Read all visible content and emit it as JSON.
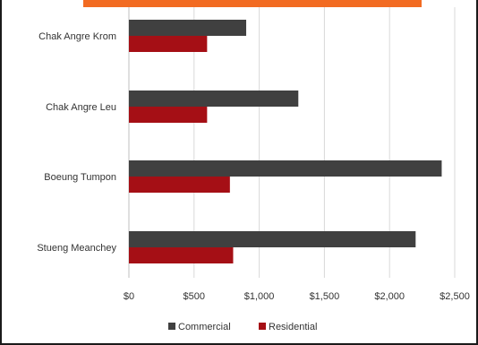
{
  "chart_data": {
    "type": "bar",
    "orientation": "horizontal",
    "categories": [
      "Chak Angre Krom",
      "Chak Angre Leu",
      "Boeung Tumpon",
      "Stueng Meanchey"
    ],
    "series": [
      {
        "name": "Commercial",
        "values": [
          900,
          1300,
          2400,
          2200
        ],
        "color": "#404040"
      },
      {
        "name": "Residential",
        "values": [
          600,
          600,
          775,
          800
        ],
        "color": "#a50f15"
      }
    ],
    "x_ticks": [
      0,
      500,
      1000,
      1500,
      2000,
      2500
    ],
    "x_tick_labels": [
      "$0",
      "$500",
      "$1,000",
      "$1,500",
      "$2,000",
      "$2,500"
    ],
    "xlim": [
      0,
      2500
    ],
    "grid": "vertical",
    "legend_position": "bottom",
    "title": "",
    "xlabel": "",
    "ylabel": ""
  },
  "colors": {
    "accent": "#f26b22",
    "gridline": "#d9d9d9"
  }
}
